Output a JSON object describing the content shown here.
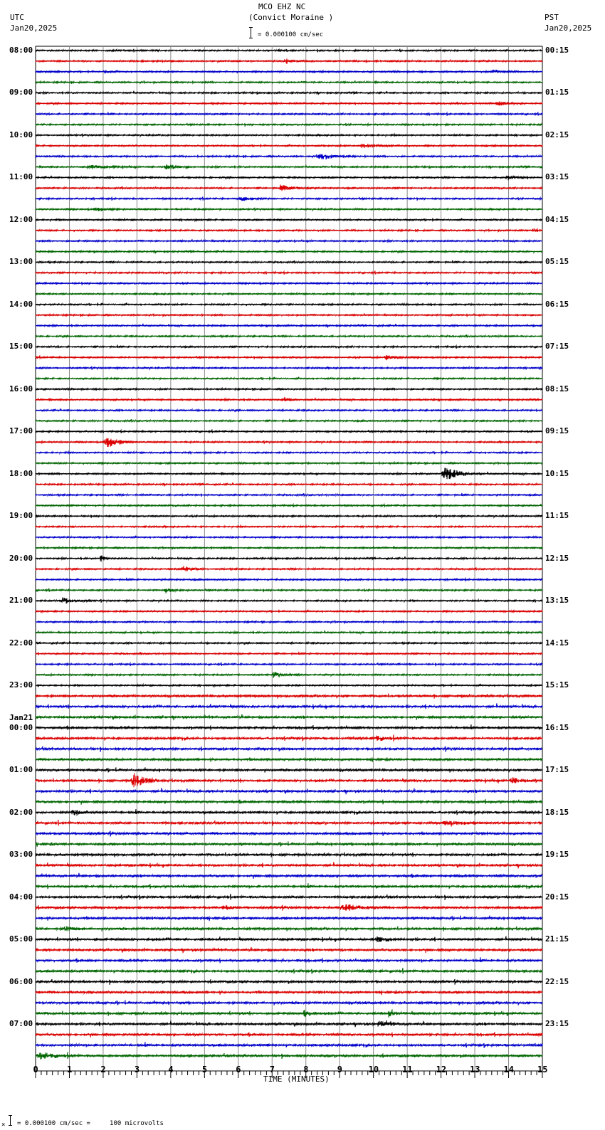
{
  "header": {
    "title": "MCO EHZ NC",
    "subtitle": "(Convict Moraine )",
    "scale_text": "= 0.000100 cm/sec",
    "left_tz": "UTC",
    "left_date": "Jan20,2025",
    "right_tz": "PST",
    "right_date": "Jan20,2025"
  },
  "footer": {
    "scale_text": "= 0.000100 cm/sec =     100 microvolts",
    "marker": "×"
  },
  "colors": {
    "trace_cycle": [
      "#000000",
      "#dd0000",
      "#0000cc",
      "#006600"
    ],
    "grid": "#888888",
    "baseline": "#000000"
  },
  "chart_data": {
    "type": "line",
    "title": "MCO EHZ NC (Convict Moraine ) helicorder",
    "xlabel": "TIME (MINUTES)",
    "ylabel": "",
    "x_ticks": [
      "0",
      "1",
      "2",
      "3",
      "4",
      "5",
      "6",
      "7",
      "8",
      "9",
      "10",
      "11",
      "12",
      "13",
      "14",
      "15"
    ],
    "xlim": [
      0,
      15
    ],
    "minor_ticks_per_minute": 6,
    "rows_per_hour": 4,
    "minutes_per_row": 15,
    "row_count": 96,
    "left_labels": [
      {
        "row": 0,
        "text": "08:00"
      },
      {
        "row": 4,
        "text": "09:00"
      },
      {
        "row": 8,
        "text": "10:00"
      },
      {
        "row": 12,
        "text": "11:00"
      },
      {
        "row": 16,
        "text": "12:00"
      },
      {
        "row": 20,
        "text": "13:00"
      },
      {
        "row": 24,
        "text": "14:00"
      },
      {
        "row": 28,
        "text": "15:00"
      },
      {
        "row": 32,
        "text": "16:00"
      },
      {
        "row": 36,
        "text": "17:00"
      },
      {
        "row": 40,
        "text": "18:00"
      },
      {
        "row": 44,
        "text": "19:00"
      },
      {
        "row": 48,
        "text": "20:00"
      },
      {
        "row": 52,
        "text": "21:00"
      },
      {
        "row": 56,
        "text": "22:00"
      },
      {
        "row": 60,
        "text": "23:00"
      },
      {
        "row": 64,
        "text": "00:00",
        "date": "Jan21"
      },
      {
        "row": 68,
        "text": "01:00"
      },
      {
        "row": 72,
        "text": "02:00"
      },
      {
        "row": 76,
        "text": "03:00"
      },
      {
        "row": 80,
        "text": "04:00"
      },
      {
        "row": 84,
        "text": "05:00"
      },
      {
        "row": 88,
        "text": "06:00"
      },
      {
        "row": 92,
        "text": "07:00"
      }
    ],
    "right_labels": [
      {
        "row": 0,
        "text": "00:15"
      },
      {
        "row": 4,
        "text": "01:15"
      },
      {
        "row": 8,
        "text": "02:15"
      },
      {
        "row": 12,
        "text": "03:15"
      },
      {
        "row": 16,
        "text": "04:15"
      },
      {
        "row": 20,
        "text": "05:15"
      },
      {
        "row": 24,
        "text": "06:15"
      },
      {
        "row": 28,
        "text": "07:15"
      },
      {
        "row": 32,
        "text": "08:15"
      },
      {
        "row": 36,
        "text": "09:15"
      },
      {
        "row": 40,
        "text": "10:15"
      },
      {
        "row": 44,
        "text": "11:15"
      },
      {
        "row": 48,
        "text": "12:15"
      },
      {
        "row": 52,
        "text": "13:15"
      },
      {
        "row": 56,
        "text": "14:15"
      },
      {
        "row": 60,
        "text": "15:15"
      },
      {
        "row": 64,
        "text": "16:15"
      },
      {
        "row": 68,
        "text": "17:15"
      },
      {
        "row": 72,
        "text": "18:15"
      },
      {
        "row": 76,
        "text": "19:15"
      },
      {
        "row": 80,
        "text": "20:15"
      },
      {
        "row": 84,
        "text": "21:15"
      },
      {
        "row": 88,
        "text": "22:15"
      },
      {
        "row": 92,
        "text": "23:15"
      }
    ],
    "events": [
      {
        "row": 1,
        "minute": 7.3,
        "duration": 0.9,
        "amp": 4
      },
      {
        "row": 2,
        "minute": 13.5,
        "duration": 0.7,
        "amp": 4
      },
      {
        "row": 2,
        "minute": 2.0,
        "duration": 0.5,
        "amp": 3
      },
      {
        "row": 5,
        "minute": 13.6,
        "duration": 1.0,
        "amp": 4
      },
      {
        "row": 9,
        "minute": 9.5,
        "duration": 1.5,
        "amp": 4
      },
      {
        "row": 10,
        "minute": 8.3,
        "duration": 1.2,
        "amp": 6
      },
      {
        "row": 11,
        "minute": 3.8,
        "duration": 0.8,
        "amp": 6
      },
      {
        "row": 11,
        "minute": 1.5,
        "duration": 1.5,
        "amp": 3
      },
      {
        "row": 12,
        "minute": 13.9,
        "duration": 0.8,
        "amp": 4
      },
      {
        "row": 13,
        "minute": 7.2,
        "duration": 1.0,
        "amp": 5
      },
      {
        "row": 14,
        "minute": 6.0,
        "duration": 0.8,
        "amp": 5
      },
      {
        "row": 15,
        "minute": 1.7,
        "duration": 0.8,
        "amp": 4
      },
      {
        "row": 17,
        "minute": 14.7,
        "duration": 0.3,
        "amp": 5
      },
      {
        "row": 29,
        "minute": 10.3,
        "duration": 0.8,
        "amp": 4
      },
      {
        "row": 33,
        "minute": 7.3,
        "duration": 0.6,
        "amp": 4
      },
      {
        "row": 37,
        "minute": 2.0,
        "duration": 1.0,
        "amp": 11
      },
      {
        "row": 40,
        "minute": 12.0,
        "duration": 1.2,
        "amp": 13
      },
      {
        "row": 48,
        "minute": 1.9,
        "duration": 0.3,
        "amp": 8
      },
      {
        "row": 49,
        "minute": 4.3,
        "duration": 0.8,
        "amp": 5
      },
      {
        "row": 51,
        "minute": 3.8,
        "duration": 0.6,
        "amp": 5
      },
      {
        "row": 52,
        "minute": 0.7,
        "duration": 1.0,
        "amp": 6
      },
      {
        "row": 59,
        "minute": 7.0,
        "duration": 0.8,
        "amp": 5
      },
      {
        "row": 65,
        "minute": 10.0,
        "duration": 0.9,
        "amp": 4
      },
      {
        "row": 69,
        "minute": 2.8,
        "duration": 1.0,
        "amp": 14
      },
      {
        "row": 69,
        "minute": 14.0,
        "duration": 1.0,
        "amp": 5
      },
      {
        "row": 72,
        "minute": 1.0,
        "duration": 1.2,
        "amp": 4
      },
      {
        "row": 73,
        "minute": 12.0,
        "duration": 1.5,
        "amp": 4
      },
      {
        "row": 81,
        "minute": 9.0,
        "duration": 1.5,
        "amp": 5
      },
      {
        "row": 81,
        "minute": 5.5,
        "duration": 0.6,
        "amp": 4
      },
      {
        "row": 83,
        "minute": 0.8,
        "duration": 0.8,
        "amp": 4
      },
      {
        "row": 84,
        "minute": 10.0,
        "duration": 1.0,
        "amp": 5
      },
      {
        "row": 91,
        "minute": 7.9,
        "duration": 0.6,
        "amp": 6
      },
      {
        "row": 91,
        "minute": 10.4,
        "duration": 0.5,
        "amp": 6
      },
      {
        "row": 92,
        "minute": 10.1,
        "duration": 0.8,
        "amp": 5
      },
      {
        "row": 95,
        "minute": 0.0,
        "duration": 1.2,
        "amp": 6
      }
    ]
  }
}
